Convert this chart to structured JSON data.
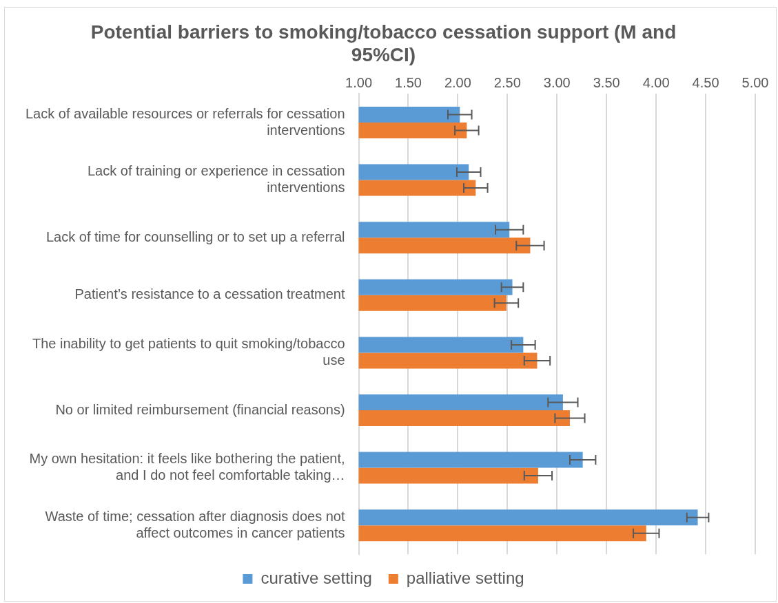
{
  "chart_data": {
    "type": "bar",
    "orientation": "horizontal",
    "title": "Potential barriers to smoking/tobacco cessation support (M and 95%CI)",
    "categories": [
      "Lack of available resources or referrals for cessation interventions",
      "Lack of training or experience in cessation interventions",
      "Lack of time for counselling or to set up a referral",
      "Patient’s resistance to a cessation treatment",
      "The inability to get patients to quit smoking/tobacco use",
      "No or limited reimbursement (financial reasons)",
      "My own hesitation: it feels like bothering the patient, and I do not feel comfortable taking…",
      "Waste of time; cessation after diagnosis does not affect outcomes in cancer patients"
    ],
    "series": [
      {
        "name": "curative setting",
        "color": "#5b9bd5",
        "values": [
          2.02,
          2.11,
          2.52,
          2.55,
          2.66,
          3.06,
          3.26,
          4.42
        ],
        "errors": [
          0.12,
          0.12,
          0.14,
          0.11,
          0.12,
          0.15,
          0.13,
          0.11
        ]
      },
      {
        "name": "palliative setting",
        "color": "#ed7d31",
        "values": [
          2.09,
          2.18,
          2.73,
          2.49,
          2.8,
          3.13,
          2.81,
          3.9
        ],
        "errors": [
          0.12,
          0.12,
          0.14,
          0.12,
          0.13,
          0.15,
          0.14,
          0.13
        ]
      }
    ],
    "xlim": [
      1,
      5
    ],
    "xticks": [
      {
        "value": 1,
        "label": "1.00"
      },
      {
        "value": 1.5,
        "label": "1.50"
      },
      {
        "value": 2,
        "label": "2.00"
      },
      {
        "value": 2.5,
        "label": "2.50"
      },
      {
        "value": 3,
        "label": "3.00"
      },
      {
        "value": 3.5,
        "label": "3.50"
      },
      {
        "value": 4,
        "label": "4.00"
      },
      {
        "value": 4.5,
        "label": "4.50"
      },
      {
        "value": 5,
        "label": "5.00"
      }
    ],
    "grid": "x",
    "legend": "bottom"
  }
}
